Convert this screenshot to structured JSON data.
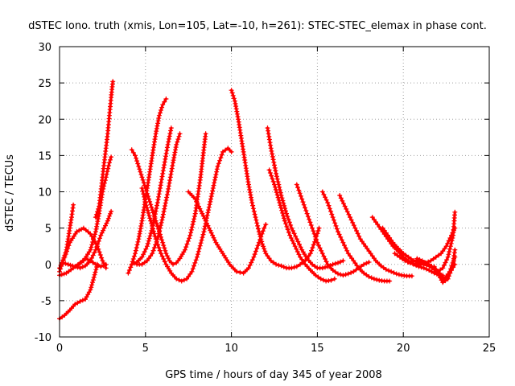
{
  "chart_data": {
    "type": "line",
    "title": "dSTEC Iono. truth (xmis, Lon=105, Lat=-10, h=261): STEC-STEC_elemax in phase cont.",
    "xlabel": "GPS time / hours of day 345 of year 2008",
    "ylabel": "dSTEC  / TECUs",
    "xlim": [
      0,
      25
    ],
    "ylim": [
      -10,
      30
    ],
    "xticks": [
      "0",
      "5",
      "10",
      "15",
      "20",
      "25"
    ],
    "yticks": [
      "-10",
      "-5",
      "0",
      "5",
      "10",
      "15",
      "20",
      "25",
      "30"
    ],
    "grid": true,
    "marker": "plus",
    "color": "#ff0000",
    "series": [
      {
        "x": [
          0.0,
          0.3,
          0.6,
          0.9,
          1.2,
          1.5,
          1.8,
          2.0,
          2.2
        ],
        "y": [
          -7.5,
          -7.0,
          -6.3,
          -5.5,
          -5.1,
          -4.8,
          -3.5,
          -1.8,
          0.0
        ]
      },
      {
        "x": [
          0.0,
          0.2,
          0.4,
          0.5,
          0.6,
          0.7,
          0.8
        ],
        "y": [
          -1.0,
          0.5,
          2.0,
          3.5,
          5.0,
          6.5,
          8.2
        ]
      },
      {
        "x": [
          0.0,
          0.4,
          0.8,
          1.2,
          1.5,
          1.8,
          2.1,
          2.4,
          2.7
        ],
        "y": [
          -1.5,
          -1.2,
          -0.5,
          0.2,
          0.8,
          0.5,
          0.0,
          -0.3,
          0.0
        ]
      },
      {
        "x": [
          0.0,
          0.3,
          0.6,
          1.0,
          1.4,
          1.8,
          2.2,
          2.5,
          2.7
        ],
        "y": [
          -0.5,
          1.0,
          3.0,
          4.5,
          5.0,
          4.2,
          2.5,
          0.5,
          -0.5
        ]
      },
      {
        "x": [
          0.2,
          0.5,
          0.9,
          1.2,
          1.5,
          1.8,
          2.1,
          2.4,
          2.8,
          3.0
        ],
        "y": [
          0.2,
          0.0,
          -0.3,
          -0.5,
          -0.2,
          0.5,
          2.0,
          4.0,
          6.0,
          7.3
        ]
      },
      {
        "x": [
          1.0,
          1.4,
          1.8,
          2.1,
          2.3,
          2.5,
          2.7,
          2.9,
          3.0
        ],
        "y": [
          -0.2,
          0.5,
          2.0,
          4.5,
          7.0,
          10.0,
          12.0,
          14.0,
          14.8
        ]
      },
      {
        "x": [
          2.1,
          2.3,
          2.4,
          2.5,
          2.6,
          2.7,
          2.8,
          2.9,
          3.0,
          3.1
        ],
        "y": [
          6.5,
          8.0,
          10.0,
          12.0,
          14.0,
          16.0,
          18.0,
          20.5,
          23.0,
          25.2
        ]
      },
      {
        "x": [
          4.0,
          4.2,
          4.4,
          4.6,
          4.8,
          5.0,
          5.2,
          5.4,
          5.6,
          5.8,
          6.0,
          6.2
        ],
        "y": [
          -1.2,
          0.0,
          1.5,
          3.5,
          6.0,
          9.0,
          12.0,
          15.0,
          18.0,
          20.5,
          22.0,
          22.8
        ]
      },
      {
        "x": [
          4.2,
          4.5,
          4.8,
          5.1,
          5.4,
          5.7,
          6.0,
          6.3,
          6.5
        ],
        "y": [
          0.0,
          0.3,
          1.0,
          2.5,
          5.0,
          8.5,
          12.5,
          16.5,
          18.8
        ]
      },
      {
        "x": [
          4.5,
          4.8,
          5.1,
          5.4,
          5.7,
          6.0,
          6.3,
          6.6,
          6.8,
          7.0
        ],
        "y": [
          0.0,
          0.0,
          0.5,
          1.5,
          3.5,
          6.5,
          10.0,
          14.0,
          16.5,
          18.0
        ]
      },
      {
        "x": [
          4.2,
          4.4,
          4.6,
          4.8,
          5.0,
          5.2,
          5.4,
          5.6,
          5.8,
          6.0,
          6.2,
          6.4,
          6.6,
          6.8,
          7.0,
          7.3,
          7.6,
          7.9,
          8.2,
          8.5
        ],
        "y": [
          15.8,
          15.0,
          13.5,
          12.0,
          10.5,
          9.0,
          7.5,
          6.0,
          4.5,
          3.0,
          1.5,
          0.5,
          0.0,
          0.2,
          0.8,
          2.0,
          4.0,
          7.0,
          12.0,
          18.0
        ]
      },
      {
        "x": [
          4.8,
          5.0,
          5.3,
          5.6,
          5.9,
          6.2,
          6.5,
          6.8,
          7.1,
          7.4,
          7.7,
          8.0,
          8.4,
          8.8,
          9.2,
          9.5,
          9.8,
          10.0
        ],
        "y": [
          10.5,
          8.5,
          6.0,
          3.5,
          1.5,
          0.0,
          -1.2,
          -2.0,
          -2.3,
          -2.0,
          -1.0,
          1.0,
          4.5,
          9.0,
          13.5,
          15.5,
          16.0,
          15.5
        ]
      },
      {
        "x": [
          7.5,
          7.9,
          8.3,
          8.7,
          9.1,
          9.5,
          9.9,
          10.3,
          10.7,
          11.0,
          11.3,
          11.6,
          11.9,
          12.0
        ],
        "y": [
          10.0,
          9.0,
          7.0,
          5.0,
          3.0,
          1.5,
          0.0,
          -1.0,
          -1.2,
          -0.5,
          1.0,
          3.0,
          5.0,
          5.5
        ]
      },
      {
        "x": [
          10.0,
          10.2,
          10.4,
          10.6,
          10.8,
          11.0,
          11.2,
          11.4,
          11.6,
          11.8,
          12.0,
          12.3,
          12.6,
          12.9,
          13.2,
          13.5,
          13.8,
          14.0,
          14.3,
          14.6,
          14.9,
          15.1
        ],
        "y": [
          24.0,
          22.5,
          20.0,
          17.0,
          14.0,
          11.0,
          8.5,
          6.5,
          4.5,
          2.8,
          1.5,
          0.5,
          0.0,
          -0.2,
          -0.5,
          -0.5,
          -0.3,
          0.0,
          0.5,
          1.5,
          3.5,
          5.0
        ]
      },
      {
        "x": [
          12.1,
          12.3,
          12.6,
          12.9,
          13.2,
          13.5,
          13.8,
          14.1,
          14.4,
          14.7,
          15.0,
          15.3,
          15.6,
          15.9,
          16.2,
          16.5
        ],
        "y": [
          18.8,
          16.0,
          12.5,
          9.5,
          7.0,
          5.0,
          3.5,
          2.0,
          0.8,
          0.0,
          -0.5,
          -0.5,
          -0.3,
          0.0,
          0.2,
          0.5
        ]
      },
      {
        "x": [
          12.2,
          12.5,
          12.8,
          13.1,
          13.4,
          13.7,
          14.0,
          14.3,
          14.6,
          14.9,
          15.2,
          15.5,
          15.8,
          16.0
        ],
        "y": [
          13.0,
          11.0,
          8.5,
          6.0,
          4.0,
          2.5,
          1.0,
          0.0,
          -0.8,
          -1.5,
          -2.0,
          -2.3,
          -2.2,
          -2.0
        ]
      },
      {
        "x": [
          13.8,
          14.1,
          14.4,
          14.7,
          15.0,
          15.3,
          15.6,
          15.9,
          16.2,
          16.5,
          16.8,
          17.1,
          17.4,
          17.7,
          18.0
        ],
        "y": [
          11.0,
          9.0,
          7.0,
          5.0,
          3.0,
          1.5,
          0.0,
          -0.8,
          -1.3,
          -1.5,
          -1.3,
          -1.0,
          -0.5,
          0.0,
          0.3
        ]
      },
      {
        "x": [
          15.3,
          15.6,
          15.9,
          16.2,
          16.5,
          16.8,
          17.1,
          17.4,
          17.7,
          18.0,
          18.3,
          18.6,
          18.9,
          19.2
        ],
        "y": [
          10.0,
          8.5,
          6.5,
          4.5,
          3.0,
          1.5,
          0.5,
          -0.5,
          -1.2,
          -1.7,
          -2.0,
          -2.2,
          -2.3,
          -2.3
        ]
      },
      {
        "x": [
          16.3,
          16.6,
          16.9,
          17.2,
          17.5,
          17.8,
          18.1,
          18.4,
          18.7,
          19.0,
          19.3,
          19.6,
          19.9,
          20.2,
          20.5
        ],
        "y": [
          9.5,
          8.0,
          6.5,
          5.0,
          3.5,
          2.5,
          1.5,
          0.5,
          -0.2,
          -0.7,
          -1.0,
          -1.3,
          -1.5,
          -1.6,
          -1.6
        ]
      },
      {
        "x": [
          18.2,
          18.5,
          18.8,
          19.1,
          19.4,
          19.7,
          20.0,
          20.3,
          20.6,
          20.9,
          21.2,
          21.5,
          21.8,
          22.1,
          22.3
        ],
        "y": [
          6.5,
          5.5,
          4.5,
          3.5,
          2.5,
          1.8,
          1.0,
          0.5,
          0.0,
          -0.3,
          -0.5,
          -0.8,
          -1.2,
          -1.5,
          -1.5
        ]
      },
      {
        "x": [
          18.8,
          19.1,
          19.4,
          19.7,
          20.0,
          20.3,
          20.6,
          20.9,
          21.2,
          21.5,
          21.8,
          22.0,
          22.3,
          22.6,
          22.9,
          23.0
        ],
        "y": [
          5.0,
          4.0,
          3.0,
          2.2,
          1.5,
          1.0,
          0.5,
          0.2,
          0.0,
          -0.2,
          -0.5,
          -1.0,
          -0.5,
          1.0,
          4.0,
          7.2
        ]
      },
      {
        "x": [
          19.5,
          19.8,
          20.1,
          20.4,
          20.7,
          21.0,
          21.3,
          21.6,
          21.9,
          22.2,
          22.5,
          22.8,
          23.0
        ],
        "y": [
          1.5,
          1.0,
          0.5,
          0.2,
          0.0,
          0.0,
          0.2,
          0.5,
          1.0,
          1.5,
          2.5,
          4.0,
          5.0
        ]
      },
      {
        "x": [
          20.3,
          20.6,
          20.9,
          21.2,
          21.5,
          21.8,
          22.1,
          22.4,
          22.7,
          23.0
        ],
        "y": [
          0.3,
          0.5,
          0.5,
          0.3,
          0.0,
          -0.5,
          -1.2,
          -2.0,
          -1.0,
          1.0
        ]
      },
      {
        "x": [
          20.8,
          21.1,
          21.4,
          21.7,
          22.0,
          22.3,
          22.6,
          22.9,
          23.0
        ],
        "y": [
          0.8,
          0.5,
          0.0,
          -0.5,
          -1.2,
          -2.5,
          -2.0,
          0.0,
          2.0
        ]
      },
      {
        "x": [
          21.8,
          22.0,
          22.2,
          22.4,
          22.6,
          22.8,
          23.0
        ],
        "y": [
          -0.3,
          -1.0,
          -1.8,
          -2.2,
          -1.5,
          -0.8,
          0.0
        ]
      }
    ]
  }
}
